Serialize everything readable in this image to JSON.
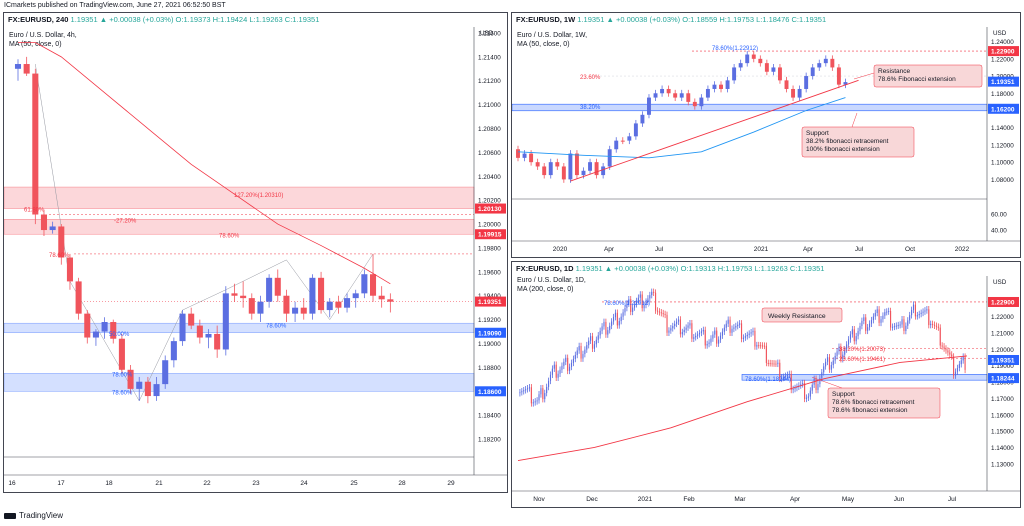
{
  "header": {
    "line1": "ICmarkets published on TradingView.com, June 27, 2021 06:52:50 BST",
    "footer": "TradingView"
  },
  "panels": [
    {
      "id": "h4",
      "symbol": "FX:EURUSD, 240",
      "ohlc": "1.19351 ▲ +0.00038 (+0.03%) O:1.19373 H:1.19424 L:1.19263 C:1.19351",
      "name": "Euro / U.S. Dollar, 4h,",
      "ma": "MA (50, close, 0)",
      "currency": "USD",
      "price_ticks": [
        "1.21600",
        "1.21400",
        "1.21200",
        "1.21000",
        "1.20800",
        "1.20600",
        "1.20400",
        "1.20200",
        "1.20000",
        "1.19800",
        "1.19600",
        "1.19400",
        "1.19200",
        "1.19000",
        "1.18800",
        "1.18600",
        "1.18400",
        "1.18200"
      ],
      "date_ticks": [
        "16",
        "17",
        "18",
        "21",
        "22",
        "23",
        "24",
        "25",
        "28",
        "29"
      ],
      "badges": [
        {
          "text": "1.20130",
          "color": "#f23645"
        },
        {
          "text": "1.19915",
          "color": "#f23645"
        },
        {
          "text": "1.19351",
          "color": "#f23645"
        },
        {
          "text": "1.19090",
          "color": "#2962ff"
        },
        {
          "text": "1.18600",
          "color": "#2962ff"
        }
      ],
      "labels": [
        "127.20%(1.20310)",
        "61.80%",
        "-27.20%",
        "78.60%",
        "78.60%",
        "78.60%",
        "50.00%",
        "78.60%",
        "78.60%"
      ]
    },
    {
      "id": "w1",
      "symbol": "FX:EURUSD, 1W",
      "ohlc": "1.19351 ▲ +0.00038 (+0.03%) O:1.18559 H:1.19753 L:1.18476 C:1.19351",
      "name": "Euro / U.S. Dollar, 1W,",
      "ma": "MA (50, close, 0)",
      "currency": "USD",
      "price_ticks": [
        "1.24000",
        "1.22000",
        "1.20000",
        "1.18000",
        "1.16000",
        "1.14000",
        "1.12000",
        "1.10000",
        "1.08000",
        "60.00",
        "40.00"
      ],
      "date_ticks": [
        "2020",
        "Apr",
        "Jul",
        "Oct",
        "2021",
        "Apr",
        "Jul",
        "Oct",
        "2022"
      ],
      "badges": [
        {
          "text": "1.22900",
          "color": "#f23645"
        },
        {
          "text": "1.19351",
          "color": "#2962ff"
        },
        {
          "text": "1.16200",
          "color": "#2962ff"
        }
      ],
      "labels": [
        "78.60%(1.22912)",
        "23.60%",
        "38.20%"
      ],
      "callouts": [
        {
          "lines": [
            "Resistance",
            "78.6% Fibonacci extension"
          ]
        },
        {
          "lines": [
            "Support",
            "38.2% fibonacci retracement",
            "100% fibonacci extension"
          ]
        }
      ]
    },
    {
      "id": "d1",
      "symbol": "FX:EURUSD, 1D",
      "ohlc": "1.19351 ▲ +0.00038 (+0.03%) O:1.19313 H:1.19753 L:1.19263 C:1.19351",
      "name": "Euro / U.S. Dollar, 1D,",
      "ma": "MA (200, close, 0)",
      "currency": "USD",
      "price_ticks": [
        "1.23000",
        "1.22000",
        "1.21000",
        "1.20000",
        "1.19000",
        "1.18000",
        "1.17000",
        "1.16000",
        "1.15000",
        "1.14000",
        "1.13000"
      ],
      "date_ticks": [
        "Nov",
        "Dec",
        "2021",
        "Feb",
        "Mar",
        "Apr",
        "May",
        "Jun",
        "Jul"
      ],
      "badges": [
        {
          "text": "1.22900",
          "color": "#f23645"
        },
        {
          "text": "1.19351",
          "color": "#2962ff"
        },
        {
          "text": "1.18244",
          "color": "#2962ff"
        }
      ],
      "labels": [
        "78.60%(1.22912)",
        "38.20%(1.20073)",
        "23.60%(1.19461)",
        "78.60%(1.18244)"
      ],
      "callouts": [
        {
          "lines": [
            "Weekly Resistance"
          ]
        },
        {
          "lines": [
            "Support",
            "78.6% fibonacci retracement",
            "78.6% fibonacci extension"
          ]
        }
      ]
    }
  ],
  "chart_data": [
    {
      "type": "candlestick",
      "panel": "h4",
      "title": "Euro / U.S. Dollar, 4h",
      "ylim": [
        1.181,
        1.2165
      ],
      "zones": [
        {
          "from": 1.2013,
          "to": 1.2031,
          "color": "#f23645"
        },
        {
          "from": 1.19915,
          "to": 1.2004,
          "color": "#f23645"
        },
        {
          "from": 1.1909,
          "to": 1.1917,
          "color": "#2962ff"
        },
        {
          "from": 1.186,
          "to": 1.1875,
          "color": "#2962ff"
        }
      ],
      "ohlc": [
        [
          1.213,
          1.2138,
          1.212,
          1.2134
        ],
        [
          1.2134,
          1.214,
          1.2124,
          1.2126
        ],
        [
          1.2126,
          1.213,
          1.2,
          1.2008
        ],
        [
          1.2008,
          1.2012,
          1.199,
          1.1995
        ],
        [
          1.1995,
          1.2002,
          1.1992,
          1.1998
        ],
        [
          1.1998,
          1.2,
          1.1966,
          1.1972
        ],
        [
          1.1972,
          1.1975,
          1.1945,
          1.1952
        ],
        [
          1.1952,
          1.1955,
          1.192,
          1.1925
        ],
        [
          1.1925,
          1.1928,
          1.19,
          1.1905
        ],
        [
          1.1905,
          1.1912,
          1.1898,
          1.191
        ],
        [
          1.191,
          1.1922,
          1.1904,
          1.1918
        ],
        [
          1.1918,
          1.192,
          1.19,
          1.1904
        ],
        [
          1.1904,
          1.1908,
          1.1875,
          1.1878
        ],
        [
          1.1878,
          1.1882,
          1.1858,
          1.1862
        ],
        [
          1.1862,
          1.1872,
          1.1852,
          1.1868
        ],
        [
          1.1868,
          1.1872,
          1.185,
          1.1856
        ],
        [
          1.1856,
          1.1872,
          1.1852,
          1.1866
        ],
        [
          1.1866,
          1.189,
          1.1862,
          1.1886
        ],
        [
          1.1886,
          1.1905,
          1.188,
          1.1902
        ],
        [
          1.1902,
          1.1928,
          1.1898,
          1.1925
        ],
        [
          1.1925,
          1.193,
          1.1912,
          1.1915
        ],
        [
          1.1915,
          1.192,
          1.19,
          1.1905
        ],
        [
          1.1905,
          1.1912,
          1.1896,
          1.1908
        ],
        [
          1.1908,
          1.1915,
          1.1888,
          1.1895
        ],
        [
          1.1895,
          1.1948,
          1.189,
          1.1942
        ],
        [
          1.1942,
          1.195,
          1.1935,
          1.194
        ],
        [
          1.194,
          1.1952,
          1.193,
          1.1938
        ],
        [
          1.1938,
          1.1942,
          1.192,
          1.1925
        ],
        [
          1.1925,
          1.194,
          1.1918,
          1.1935
        ],
        [
          1.1935,
          1.1958,
          1.193,
          1.1955
        ],
        [
          1.1955,
          1.1962,
          1.1935,
          1.194
        ],
        [
          1.194,
          1.1945,
          1.1918,
          1.1925
        ],
        [
          1.1925,
          1.1935,
          1.1918,
          1.193
        ],
        [
          1.193,
          1.1938,
          1.192,
          1.1925
        ],
        [
          1.1925,
          1.1958,
          1.192,
          1.1955
        ],
        [
          1.1955,
          1.196,
          1.1925,
          1.1928
        ],
        [
          1.1928,
          1.1938,
          1.1922,
          1.1935
        ],
        [
          1.1935,
          1.194,
          1.1925,
          1.193
        ],
        [
          1.193,
          1.1942,
          1.1926,
          1.1938
        ],
        [
          1.1938,
          1.1945,
          1.193,
          1.1942
        ],
        [
          1.1942,
          1.1962,
          1.1938,
          1.1958
        ],
        [
          1.1958,
          1.1975,
          1.1935,
          1.194
        ],
        [
          1.194,
          1.1948,
          1.193,
          1.1937
        ],
        [
          1.1937,
          1.1942,
          1.1926,
          1.1935
        ]
      ],
      "ma": [
        [
          0,
          1.2152
        ],
        [
          2,
          1.2152
        ],
        [
          5,
          1.214
        ],
        [
          10,
          1.211
        ],
        [
          15,
          1.208
        ],
        [
          20,
          1.205
        ],
        [
          25,
          1.2025
        ],
        [
          30,
          1.2
        ],
        [
          35,
          1.1982
        ],
        [
          40,
          1.1963
        ],
        [
          43,
          1.195
        ]
      ]
    },
    {
      "type": "candlestick",
      "panel": "w1",
      "title": "Euro / U.S. Dollar, 1W",
      "ylim": [
        1.07,
        1.25
      ],
      "zones": [
        {
          "from": 1.162,
          "to": 1.165,
          "color": "#2962ff"
        }
      ],
      "ohlc_summary": [
        [
          1.115,
          1.105
        ],
        [
          1.105,
          1.11
        ],
        [
          1.11,
          1.1
        ],
        [
          1.1,
          1.095
        ],
        [
          1.095,
          1.085
        ],
        [
          1.085,
          1.1
        ],
        [
          1.1,
          1.095
        ],
        [
          1.095,
          1.08
        ],
        [
          1.08,
          1.11
        ],
        [
          1.11,
          1.085
        ],
        [
          1.085,
          1.09
        ],
        [
          1.09,
          1.1
        ],
        [
          1.1,
          1.085
        ],
        [
          1.085,
          1.095
        ],
        [
          1.095,
          1.115
        ],
        [
          1.115,
          1.125
        ],
        [
          1.125,
          1.125
        ],
        [
          1.125,
          1.13
        ],
        [
          1.13,
          1.145
        ],
        [
          1.145,
          1.155
        ],
        [
          1.155,
          1.175
        ],
        [
          1.175,
          1.18
        ],
        [
          1.18,
          1.185
        ],
        [
          1.185,
          1.18
        ],
        [
          1.18,
          1.175
        ],
        [
          1.175,
          1.18
        ],
        [
          1.18,
          1.17
        ],
        [
          1.17,
          1.165
        ],
        [
          1.165,
          1.175
        ],
        [
          1.175,
          1.185
        ],
        [
          1.185,
          1.19
        ],
        [
          1.19,
          1.185
        ],
        [
          1.185,
          1.195
        ],
        [
          1.195,
          1.21
        ],
        [
          1.21,
          1.215
        ],
        [
          1.215,
          1.225
        ],
        [
          1.225,
          1.22
        ],
        [
          1.22,
          1.215
        ],
        [
          1.215,
          1.205
        ],
        [
          1.205,
          1.21
        ],
        [
          1.21,
          1.195
        ],
        [
          1.195,
          1.185
        ],
        [
          1.185,
          1.175
        ],
        [
          1.175,
          1.185
        ],
        [
          1.185,
          1.2
        ],
        [
          1.2,
          1.21
        ],
        [
          1.21,
          1.215
        ],
        [
          1.215,
          1.22
        ],
        [
          1.22,
          1.21
        ],
        [
          1.21,
          1.19
        ],
        [
          1.19,
          1.193
        ]
      ]
    },
    {
      "type": "candlestick",
      "panel": "d1",
      "title": "Euro / U.S. Dollar, 1D",
      "ylim": [
        1.125,
        1.24
      ],
      "zones": [
        {
          "from": 1.1824,
          "to": 1.1835,
          "color": "#2962ff"
        }
      ]
    }
  ]
}
